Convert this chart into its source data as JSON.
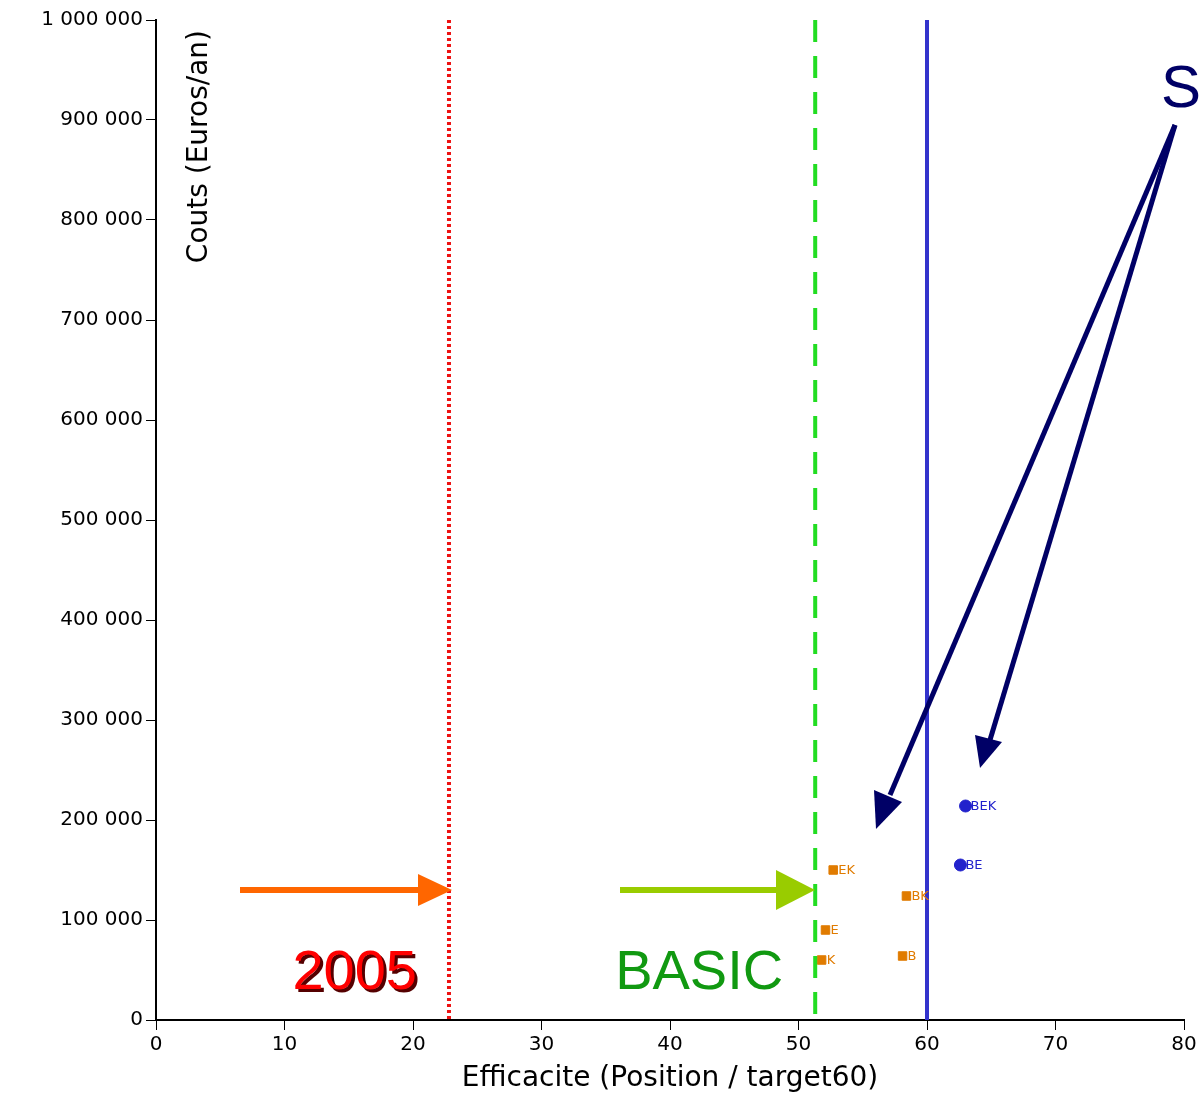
{
  "chart_data": {
    "type": "scatter",
    "xlabel": "Efficacite (Position / target60)",
    "ylabel": "Couts (Euros/an)",
    "xlim": [
      0,
      80
    ],
    "xticks": [
      0,
      10,
      20,
      30,
      40,
      50,
      60,
      70,
      80
    ],
    "ylim": [
      0,
      1000000
    ],
    "yticks": [
      {
        "value": 0,
        "label": "0"
      },
      {
        "value": 100000,
        "label": "100 000"
      },
      {
        "value": 200000,
        "label": "200 000"
      },
      {
        "value": 300000,
        "label": "300 000"
      },
      {
        "value": 400000,
        "label": "400 000"
      },
      {
        "value": 500000,
        "label": "500 000"
      },
      {
        "value": 600000,
        "label": "600 000"
      },
      {
        "value": 700000,
        "label": "700 000"
      },
      {
        "value": 800000,
        "label": "800 000"
      },
      {
        "value": 900000,
        "label": "900 000"
      },
      {
        "value": 1000000,
        "label": "1 000 000"
      }
    ],
    "grid": false,
    "legend": false,
    "series": [
      {
        "color": "#e07b00",
        "marker": "square",
        "x": [
          52.7,
          52.1,
          51.8,
          58.4,
          58.1
        ],
        "values": [
          150000,
          90000,
          60000,
          124000,
          64000
        ]
      },
      {
        "color": "#2222cc",
        "marker": "circle",
        "x": [
          63.0,
          62.6
        ],
        "values": [
          214000,
          155000
        ]
      }
    ],
    "ref_lines": [
      {
        "axis": "x",
        "value": 22.8,
        "color": "#ee1111",
        "line_style": "dotted"
      },
      {
        "axis": "x",
        "value": 51.3,
        "color": "#22dd22",
        "line_style": "dashed"
      },
      {
        "axis": "x",
        "value": 60,
        "color": "#3333cc",
        "line_style": "solid"
      }
    ],
    "annotations": [
      {
        "text": "2005",
        "x": 22.8
      },
      {
        "text": "BASIC",
        "x": 51.3
      },
      {
        "text": "EK",
        "x": 52.7,
        "y": 150000
      },
      {
        "text": "E",
        "x": 52.1,
        "y": 90000
      },
      {
        "text": "K",
        "x": 51.8,
        "y": 60000
      },
      {
        "text": "BK",
        "x": 58.4,
        "y": 124000
      },
      {
        "text": "B",
        "x": 58.1,
        "y": 64000
      },
      {
        "text": "BEK",
        "x": 63.0,
        "y": 214000
      },
      {
        "text": "BE",
        "x": 62.6,
        "y": 155000
      },
      "S"
    ]
  }
}
